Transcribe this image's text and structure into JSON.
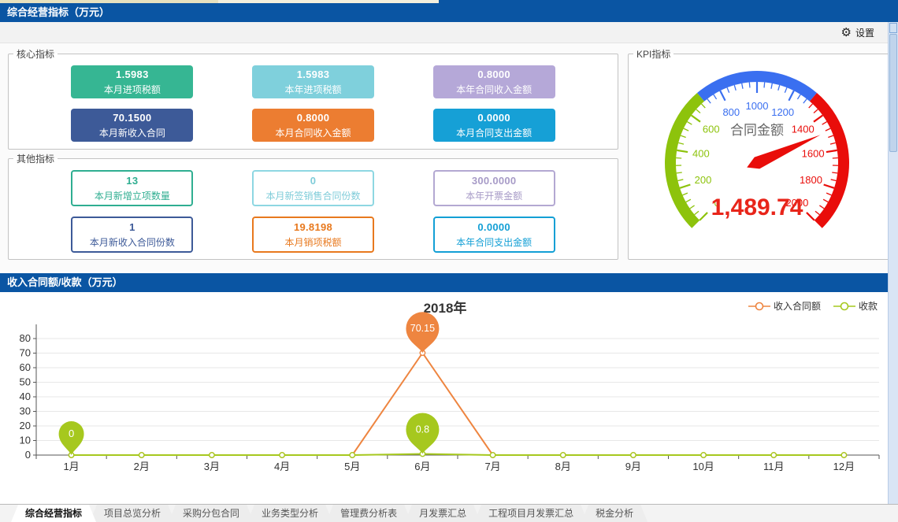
{
  "window": {
    "title": "综合经营指标（万元）",
    "settings_label": "设置"
  },
  "sections": {
    "core": {
      "legend": "核心指标",
      "tiles": [
        {
          "value": "1.5983",
          "label": "本月进项税额",
          "color": "#36b693"
        },
        {
          "value": "1.5983",
          "label": "本年进项税额",
          "color": "#7fd0dc"
        },
        {
          "value": "0.8000",
          "label": "本年合同收入金额",
          "color": "#b5a8d8"
        },
        {
          "value": "70.1500",
          "label": "本月新收入合同",
          "color": "#3d5a98"
        },
        {
          "value": "0.8000",
          "label": "本月合同收入金额",
          "color": "#ec7d31"
        },
        {
          "value": "0.0000",
          "label": "本月合同支出金额",
          "color": "#16a0d6"
        }
      ]
    },
    "other": {
      "legend": "其他指标",
      "tiles": [
        {
          "value": "13",
          "label": "本月新增立项数量",
          "color": "#2fae91"
        },
        {
          "value": "0",
          "label": "本月新签销售合同份数",
          "color": "#8ed7e2",
          "text_color": "#7fccd9"
        },
        {
          "value": "300.0000",
          "label": "本年开票金额",
          "color": "#b3a8d2",
          "text_color": "#a79bc7"
        },
        {
          "value": "1",
          "label": "本月新收入合同份数",
          "color": "#3d5a98"
        },
        {
          "value": "19.8198",
          "label": "本月销项税额",
          "color": "#e8791e"
        },
        {
          "value": "0.0000",
          "label": "本年合同支出金额",
          "color": "#139fd5"
        }
      ]
    },
    "kpi": {
      "legend": "KPI指标"
    },
    "chart": {
      "header": "收入合同额/收款（万元）"
    }
  },
  "chart_data": [
    {
      "type": "gauge",
      "title": "合同金额",
      "value": 1489.74,
      "value_display": "1,489.74",
      "min": 0,
      "max": 2000,
      "label_step": 200,
      "minor_step": 40,
      "segments": [
        {
          "to": 700,
          "color": "#8dc30c"
        },
        {
          "to": 1300,
          "color": "#3a6ff0"
        },
        {
          "to": 2000,
          "color": "#e90d0a"
        }
      ],
      "needle_color": "#e90d0a",
      "value_color": "#e8251a",
      "title_color": "#666666"
    },
    {
      "type": "line",
      "title": "2018年",
      "categories": [
        "1月",
        "2月",
        "3月",
        "4月",
        "5月",
        "6月",
        "7月",
        "8月",
        "9月",
        "10月",
        "11月",
        "12月"
      ],
      "series": [
        {
          "name": "收入合同额",
          "color": "#ee8540",
          "values": [
            0,
            0,
            0,
            0,
            0,
            70.15,
            0,
            0,
            0,
            0,
            0,
            0
          ]
        },
        {
          "name": "收款",
          "color": "#a6c81e",
          "values": [
            0,
            0,
            0,
            0,
            0,
            0.8,
            0,
            0,
            0,
            0,
            0,
            0
          ]
        }
      ],
      "ylim": [
        0,
        80
      ],
      "ytick_step": 10,
      "grid": true,
      "legend_position": "top-right",
      "annotations": [
        {
          "series": 1,
          "category": "1月",
          "label": "0"
        },
        {
          "series": 0,
          "category": "6月",
          "label": "70.15"
        },
        {
          "series": 1,
          "category": "6月",
          "label": "0.8"
        }
      ]
    }
  ],
  "tabs": {
    "active_index": 0,
    "items": [
      "综合经营指标",
      "项目总览分析",
      "采购分包合同",
      "业务类型分析",
      "管理费分析表",
      "月发票汇总",
      "工程项目月发票汇总",
      "税金分析"
    ]
  }
}
